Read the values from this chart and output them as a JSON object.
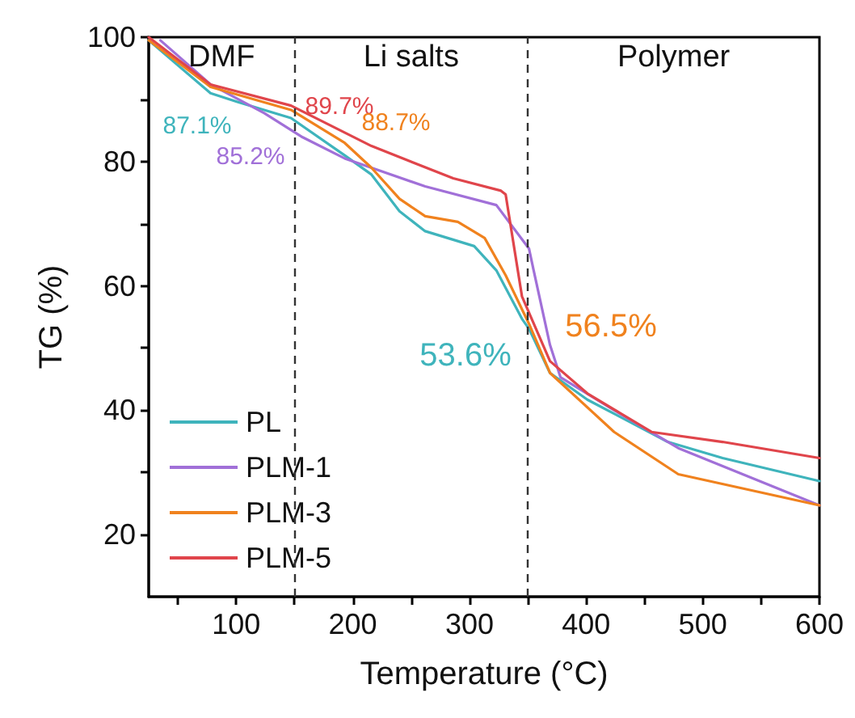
{
  "chart_data": {
    "type": "line",
    "xlabel": "Temperature (°C)",
    "ylabel": "TG (%)",
    "xlim": [
      25,
      600
    ],
    "xticks": [
      {
        "value": 50,
        "label": null
      },
      100,
      {
        "value": 150,
        "label": null
      },
      200,
      {
        "value": 250,
        "label": null
      },
      300,
      {
        "value": 350,
        "label": null
      },
      400,
      {
        "value": 450,
        "label": null
      },
      500,
      {
        "value": 550,
        "label": null
      },
      600
    ],
    "ylim": [
      10,
      100
    ],
    "yticks": [
      20,
      {
        "value": 30,
        "label": null
      },
      40,
      {
        "value": 50,
        "label": null
      },
      60,
      {
        "value": 70,
        "label": null
      },
      80,
      {
        "value": 90,
        "label": null
      },
      100
    ],
    "grid": false,
    "legend": "bottom left",
    "marker": "none",
    "line_style": "solid",
    "series": [
      {
        "name": "PL",
        "color": "#3fb4bc",
        "x": [
          25,
          78,
          101,
          147,
          193,
          216,
          240,
          262,
          304,
          323,
          345,
          351,
          369,
          401,
          470,
          517,
          600
        ],
        "values": [
          99.5,
          91,
          89.6,
          87,
          81,
          77.9,
          72,
          68.8,
          66.4,
          62.5,
          54.7,
          53.1,
          46,
          41.7,
          34.9,
          32.3,
          28.6
        ]
      },
      {
        "name": "PLM-1",
        "color": "#a170d8",
        "x": [
          35,
          78,
          124,
          157,
          193,
          216,
          262,
          323,
          351,
          355,
          369,
          378,
          424,
          479,
          600
        ],
        "values": [
          99.5,
          92.4,
          87.8,
          83.9,
          80.5,
          79,
          76,
          73,
          66,
          62.5,
          50.5,
          45.3,
          40,
          33.9,
          24.7
        ]
      },
      {
        "name": "PLM-3",
        "color": "#f0821e",
        "x": [
          25,
          78,
          147,
          193,
          216,
          240,
          262,
          290,
          313,
          331,
          351,
          369,
          424,
          479,
          600
        ],
        "values": [
          99.5,
          92,
          88.3,
          83,
          79,
          74,
          71.2,
          70.3,
          67.7,
          61.7,
          53.9,
          46,
          36.5,
          29.7,
          24.7
        ]
      },
      {
        "name": "PLM-5",
        "color": "#e0454b",
        "x": [
          25,
          78,
          147,
          216,
          286,
          327,
          331,
          345,
          369,
          401,
          456,
          517,
          600
        ],
        "values": [
          100,
          92.4,
          89,
          82.5,
          77.3,
          75.3,
          74.7,
          58.3,
          47.9,
          42.7,
          36.5,
          34.9,
          32.3
        ]
      }
    ],
    "ref_lines": [
      {
        "axis": "x",
        "value": 150,
        "color": "#333333",
        "line_style": "dashed"
      },
      {
        "axis": "x",
        "value": 350,
        "color": "#333333",
        "line_style": "dashed"
      }
    ],
    "annotations": [
      "DMF",
      "Li salts",
      "Polymer",
      "87.1%",
      "85.2%",
      "89.7%",
      "88.7%",
      "53.6%",
      "56.5%"
    ]
  }
}
